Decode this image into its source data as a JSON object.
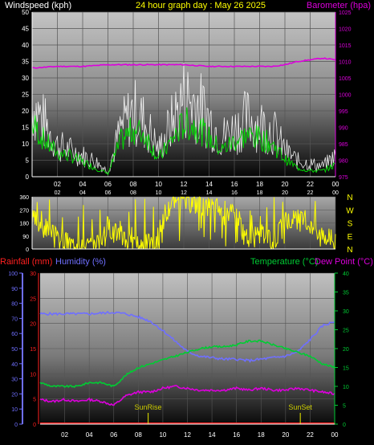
{
  "colors": {
    "background": "#000000",
    "wind_label": "#ffffff",
    "title": "#ffff00",
    "barometer": "#dd00dd",
    "wind_speed": "#ffffff",
    "wind_avg": "#00dd00",
    "wind_dir": "#ffff00",
    "rain": "#ff2020",
    "humidity": "#6f6fff",
    "temperature": "#00cc33",
    "dewpoint": "#dd00dd",
    "sunmark": "#cccc00"
  },
  "chart_data": [
    {
      "type": "line",
      "id": "wind_baro",
      "title": "24 hour graph day : May 26 2025",
      "ylabel_left": "Windspeed (kph)",
      "ylabel_right": "Barometer (hpa)",
      "x_ticks": [
        "02",
        "04",
        "06",
        "08",
        "10",
        "12",
        "14",
        "16",
        "18",
        "20",
        "22",
        "00"
      ],
      "y_left_ticks": [
        0,
        5,
        10,
        15,
        20,
        25,
        30,
        35,
        40,
        45,
        50
      ],
      "y_left_range": [
        0,
        50
      ],
      "y_right_ticks": [
        975,
        980,
        985,
        990,
        995,
        1000,
        1005,
        1010,
        1015,
        1020,
        1025
      ],
      "y_right_range": [
        975,
        1025
      ],
      "x_range": [
        0,
        24
      ],
      "series": [
        {
          "key": "wind_max",
          "hours": [
            0,
            1,
            2,
            3,
            4,
            5,
            6,
            7,
            8,
            9,
            10,
            11,
            12,
            13,
            14,
            15,
            16,
            17,
            18,
            19,
            20,
            21,
            22,
            23,
            24
          ],
          "values": [
            28,
            20,
            12,
            10,
            8,
            6,
            2,
            18,
            25,
            20,
            10,
            20,
            30,
            28,
            22,
            15,
            18,
            22,
            20,
            18,
            10,
            6,
            5,
            4,
            8
          ]
        },
        {
          "key": "wind_avg",
          "hours": [
            0,
            1,
            2,
            3,
            4,
            5,
            6,
            7,
            8,
            9,
            10,
            11,
            12,
            13,
            14,
            15,
            16,
            17,
            18,
            19,
            20,
            21,
            22,
            23,
            24
          ],
          "values": [
            18,
            12,
            8,
            7,
            5,
            3,
            1,
            12,
            16,
            14,
            6,
            12,
            18,
            17,
            13,
            9,
            12,
            14,
            13,
            11,
            6,
            3,
            2,
            2,
            4
          ]
        },
        {
          "key": "barometer",
          "hours": [
            0,
            2,
            4,
            6,
            8,
            10,
            12,
            14,
            16,
            18,
            19,
            20,
            21,
            22,
            23,
            24
          ],
          "values": [
            1008,
            1008.5,
            1008.5,
            1009,
            1009,
            1009,
            1009,
            1008.5,
            1008.5,
            1008.5,
            1008.5,
            1009,
            1010,
            1010.5,
            1011,
            1010.5
          ]
        }
      ]
    },
    {
      "type": "scatter",
      "id": "wind_direction",
      "x_ticks": [
        "02",
        "04",
        "06",
        "08",
        "10",
        "12",
        "14",
        "16",
        "18",
        "20",
        "22",
        "00"
      ],
      "y_ticks": [
        0,
        90,
        180,
        270,
        360
      ],
      "y_range": [
        0,
        360
      ],
      "compass_labels": [
        "N",
        "W",
        "S",
        "E",
        "N"
      ],
      "x_range": [
        0,
        24
      ],
      "series": [
        {
          "key": "direction",
          "hours": [
            0,
            1,
            2,
            3,
            4,
            5,
            6,
            7,
            8,
            9,
            10,
            11,
            12,
            13,
            14,
            15,
            16,
            17,
            18,
            19,
            20,
            21,
            22,
            23,
            24
          ],
          "values": [
            200,
            150,
            60,
            40,
            20,
            30,
            160,
            120,
            20,
            40,
            20,
            340,
            330,
            320,
            300,
            280,
            230,
            60,
            100,
            40,
            180,
            200,
            180,
            120,
            40
          ]
        }
      ]
    },
    {
      "type": "line",
      "id": "temp_hum_rain",
      "y_rain_label": "Rainfall (mm)",
      "y_hum_label": "Humidity (%)",
      "y_temp_label": "Temperature (°C)",
      "y_dew_label": "Dew Point (°C)",
      "x_ticks": [
        "02",
        "04",
        "06",
        "08",
        "10",
        "12",
        "14",
        "16",
        "18",
        "20",
        "22",
        "00"
      ],
      "y_hum_ticks": [
        0,
        10,
        20,
        30,
        40,
        50,
        60,
        70,
        80,
        90,
        100
      ],
      "y_hum_range": [
        0,
        100
      ],
      "y_rain_ticks": [
        0,
        5,
        10,
        15,
        20,
        25,
        30
      ],
      "y_rain_range": [
        0,
        30
      ],
      "y_temp_ticks": [
        0,
        5,
        10,
        15,
        20,
        25,
        30,
        35,
        40
      ],
      "y_temp_range": [
        0,
        40
      ],
      "x_range": [
        0,
        24
      ],
      "sun_labels": {
        "sunrise": "SunRise",
        "sunset": "SunSet"
      },
      "sunrise_hour": 8.8,
      "sunset_hour": 21.2,
      "series": [
        {
          "key": "humidity",
          "hours": [
            0,
            2,
            4,
            6,
            7,
            8,
            9,
            10,
            11,
            12,
            13,
            14,
            15,
            16,
            17,
            18,
            19,
            20,
            21,
            22,
            23,
            24
          ],
          "values": [
            73,
            73,
            73,
            74,
            73,
            71,
            68,
            62,
            55,
            48,
            45,
            44,
            43,
            43,
            42,
            43,
            44,
            45,
            48,
            56,
            65,
            68
          ]
        },
        {
          "key": "temperature",
          "hours": [
            0,
            1,
            2,
            3,
            4,
            5,
            6,
            7,
            8,
            9,
            10,
            11,
            12,
            13,
            14,
            15,
            16,
            17,
            18,
            19,
            20,
            21,
            22,
            23,
            24
          ],
          "values": [
            11,
            10,
            10,
            10,
            11,
            11,
            10,
            13,
            15,
            16,
            17,
            18,
            19,
            20,
            20.5,
            20.5,
            21,
            22,
            22,
            21,
            20,
            19,
            18,
            16,
            15
          ]
        },
        {
          "key": "dewpoint",
          "hours": [
            0,
            1,
            2,
            3,
            4,
            5,
            6,
            7,
            8,
            9,
            10,
            11,
            12,
            13,
            14,
            15,
            16,
            17,
            18,
            19,
            20,
            21,
            22,
            23,
            24
          ],
          "values": [
            6.5,
            6,
            6.5,
            6,
            6.5,
            6,
            5,
            7.5,
            8.5,
            8.5,
            9.5,
            10,
            9.5,
            9,
            9,
            9,
            9.5,
            9,
            9.5,
            9,
            9,
            9.5,
            9,
            8.5,
            8
          ]
        },
        {
          "key": "rain",
          "hours": [
            0,
            24
          ],
          "values": [
            0,
            0
          ]
        }
      ]
    }
  ]
}
